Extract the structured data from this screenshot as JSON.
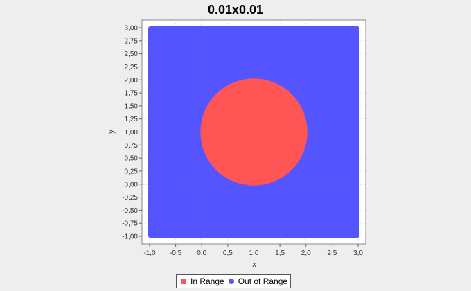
{
  "chart_data": {
    "type": "scatter",
    "title": "0.01x0.01",
    "xlabel": "x",
    "ylabel": "y",
    "xlim": [
      -1.0,
      3.0
    ],
    "ylim": [
      -1.0,
      3.0
    ],
    "x_ticks": [
      "-1,0",
      "-0,5",
      "0,0",
      "0,5",
      "1,0",
      "1,5",
      "2,0",
      "2,5",
      "3,0"
    ],
    "x_tick_values": [
      -1.0,
      -0.5,
      0.0,
      0.5,
      1.0,
      1.5,
      2.0,
      2.5,
      3.0
    ],
    "y_ticks": [
      "3,00",
      "2,75",
      "2,50",
      "2,25",
      "2,00",
      "1,75",
      "1,50",
      "1,25",
      "1,00",
      "0,75",
      "0,50",
      "0,25",
      "0,00",
      "-0,25",
      "-0,50",
      "-0,75",
      "-1,00"
    ],
    "y_tick_values": [
      3.0,
      2.75,
      2.5,
      2.25,
      2.0,
      1.75,
      1.5,
      1.25,
      1.0,
      0.75,
      0.5,
      0.25,
      0.0,
      -0.25,
      -0.5,
      -0.75,
      -1.0
    ],
    "grid": true,
    "legend_position": "bottom",
    "series": [
      {
        "name": "In Range",
        "color": "#ff5555",
        "marker": "square",
        "region": {
          "shape": "circle",
          "center": [
            1.0,
            1.0
          ],
          "radius": 1.0
        }
      },
      {
        "name": "Out of Range",
        "color": "#5555ff",
        "marker": "circle",
        "region": {
          "shape": "square",
          "x": [
            -1.0,
            3.0
          ],
          "y": [
            -1.0,
            3.0
          ]
        }
      }
    ]
  },
  "colors": {
    "plot_background": "#ffffff",
    "gridline": "#c0c0c0",
    "crosshair": "#3333cc",
    "in_range": "#ff5555",
    "out_of_range": "#5555ff"
  }
}
